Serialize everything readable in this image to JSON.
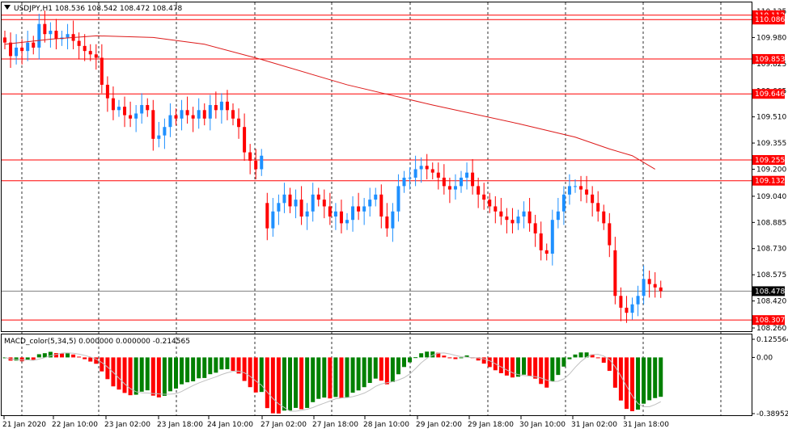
{
  "header": {
    "symbol_line": "USDJPY,H1  108.536 108.542 108.472 108.478",
    "indicator_line": "MACD_color(5,34,5) 0.000000 0.000000 -0.214565"
  },
  "colors": {
    "up": "#1e90ff",
    "down": "#ff0000",
    "ma": "#dd1a1a",
    "level": "#ff0000",
    "macd_up": "#008000",
    "macd_down": "#ff0000",
    "grid": "#000000",
    "background": "#ffffff"
  },
  "chart_data": [
    {
      "type": "candlestick",
      "symbol": "USDJPY",
      "timeframe": "H1",
      "ylim": [
        108.26,
        110.135
      ],
      "y_ticks": [
        "110.135",
        "109.980",
        "109.825",
        "109.665",
        "109.510",
        "109.355",
        "109.200",
        "109.040",
        "108.885",
        "108.730",
        "108.575",
        "108.420",
        "108.260"
      ],
      "x_ticks": [
        "21 Jan 2020",
        "22 Jan 10:00",
        "23 Jan 02:00",
        "23 Jan 18:00",
        "24 Jan 10:00",
        "27 Jan 02:00",
        "27 Jan 18:00",
        "28 Jan 10:00",
        "29 Jan 02:00",
        "29 Jan 18:00",
        "30 Jan 10:00",
        "31 Jan 02:00",
        "31 Jan 18:00"
      ],
      "current_price": 108.478,
      "horizontal_levels": [
        110.112,
        110.086,
        109.853,
        109.646,
        109.255,
        109.132,
        108.307
      ],
      "moving_average_points": [
        [
          0,
          109.94
        ],
        [
          8,
          109.97
        ],
        [
          16,
          109.99
        ],
        [
          26,
          109.98
        ],
        [
          35,
          109.94
        ],
        [
          45,
          109.85
        ],
        [
          60,
          109.7
        ],
        [
          75,
          109.58
        ],
        [
          90,
          109.47
        ],
        [
          100,
          109.39
        ],
        [
          106,
          109.32
        ],
        [
          110,
          109.28
        ],
        [
          114,
          109.2
        ]
      ],
      "bar_count": 116
    },
    {
      "type": "bar",
      "name": "MACD_color(5,34,5)",
      "ylim": [
        -0.389525,
        0.125564
      ],
      "y_ticks": [
        "0.125564",
        "0.00",
        "-0.389525"
      ],
      "values_source": "computed from close series"
    }
  ]
}
